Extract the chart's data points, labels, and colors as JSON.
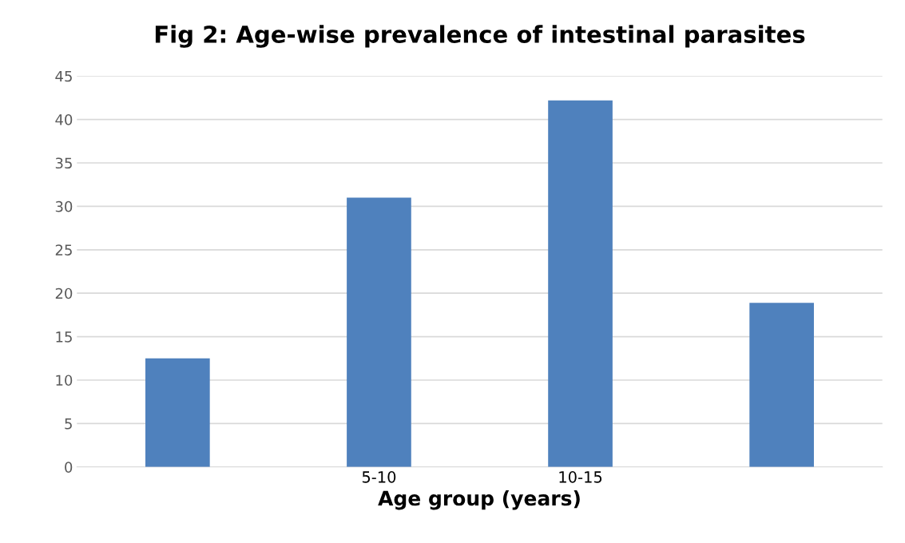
{
  "chart_data": {
    "type": "bar",
    "title": "Fig 2: Age-wise prevalence of intestinal parasites",
    "xlabel": "Age group (years)",
    "categories": [
      null,
      "5-10",
      "10-15",
      null
    ],
    "values": [
      12.5,
      31.0,
      42.2,
      18.9
    ],
    "color": "#4f81bd",
    "ylim": [
      0,
      45
    ],
    "yticks": [
      0,
      5,
      10,
      15,
      20,
      25,
      30,
      35,
      40,
      45
    ],
    "grid": "y"
  }
}
